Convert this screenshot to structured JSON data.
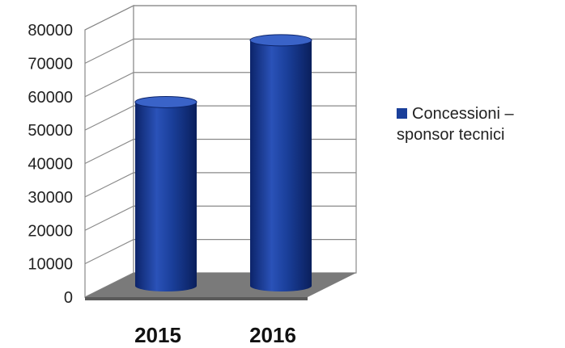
{
  "chart_data": {
    "type": "bar",
    "categories": [
      "2015",
      "2016"
    ],
    "series": [
      {
        "name": "Concessioni – sponsor tecnici",
        "values": [
          55000,
          73500
        ]
      }
    ],
    "yticks": [
      "0",
      "10000",
      "20000",
      "30000",
      "40000",
      "50000",
      "60000",
      "70000",
      "80000"
    ],
    "ylim": [
      0,
      80000
    ],
    "grid": true,
    "legend_position": "right",
    "bar_shape": "3d-cylinder",
    "colors": {
      "bar": "#1a3f9a",
      "bar_dark": "#0c246a",
      "bar_light": "#3a63c8",
      "floor": "#7a7a7a",
      "grid": "#8a8a8a"
    }
  }
}
